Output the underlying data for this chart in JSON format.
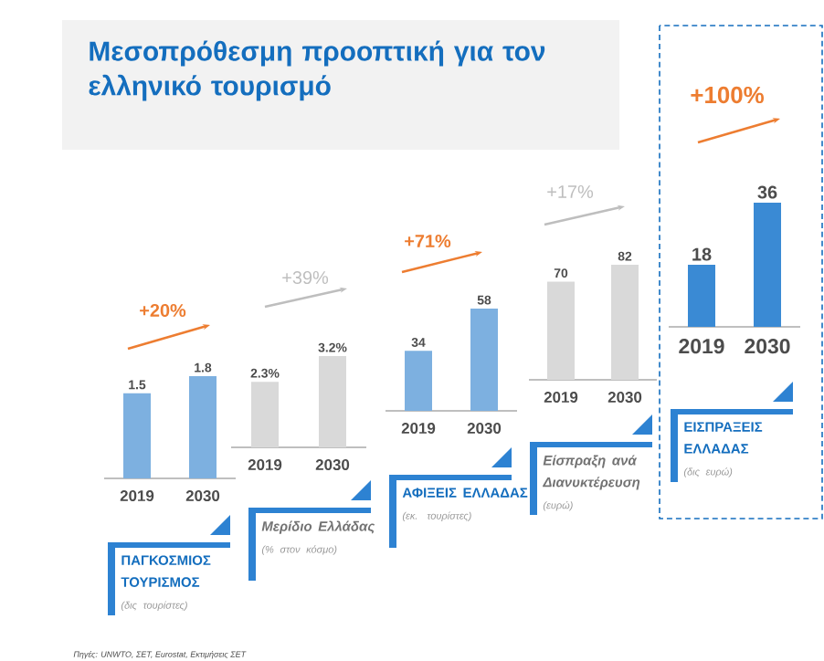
{
  "chart_data": [
    {
      "type": "other",
      "title": "Μεσοπρόθεσμη προοπτική για τον ελληνικό τουρισμό",
      "annotations": [
        "Πηγές: UNWTO, ΣΕΤ, Eurostat, Εκτιμήσεις ΣΕΤ"
      ]
    },
    {
      "type": "bar",
      "title": "ΠΑΓΚΟΣΜΙΟΣ ΤΟΥΡΙΣΜΟΣ",
      "subtitle": "(δις τουρίστες)",
      "categories": [
        "2019",
        "2030"
      ],
      "values": [
        1.5,
        1.8
      ],
      "color": "#7db0e0",
      "data_labels": true,
      "annotations": [
        "+20%"
      ]
    },
    {
      "type": "bar",
      "title": "Μερίδιο Ελλάδας",
      "subtitle": "(% στον κόσμο)",
      "categories": [
        "2019",
        "2030"
      ],
      "values": [
        2.3,
        3.2
      ],
      "value_labels": [
        "2.3%",
        "3.2%"
      ],
      "color": "#d9d9d9",
      "annotations": [
        "+39%"
      ]
    },
    {
      "type": "bar",
      "title": "ΑΦΙΞΕΙΣ ΕΛΛΑΔΑΣ",
      "subtitle": "(εκ. τουρίστες)",
      "categories": [
        "2019",
        "2030"
      ],
      "values": [
        34,
        58
      ],
      "color": "#7db0e0",
      "data_labels": true,
      "annotations": [
        "+71%"
      ]
    },
    {
      "type": "bar",
      "title": "Είσπραξη ανά Διανυκτέρευση",
      "subtitle": "(ευρώ)",
      "categories": [
        "2019",
        "2030"
      ],
      "values": [
        70,
        82
      ],
      "color": "#d9d9d9",
      "data_labels": true,
      "annotations": [
        "+17%"
      ]
    },
    {
      "type": "bar",
      "title": "ΕΙΣΠΡΑΞΕΙΣ ΕΛΛΑΔΑΣ",
      "subtitle": "(δις ευρώ)",
      "categories": [
        "2019",
        "2030"
      ],
      "values": [
        18,
        36
      ],
      "color": "#3a8ad4",
      "data_labels": true,
      "annotations": [
        "+100%"
      ]
    }
  ]
}
